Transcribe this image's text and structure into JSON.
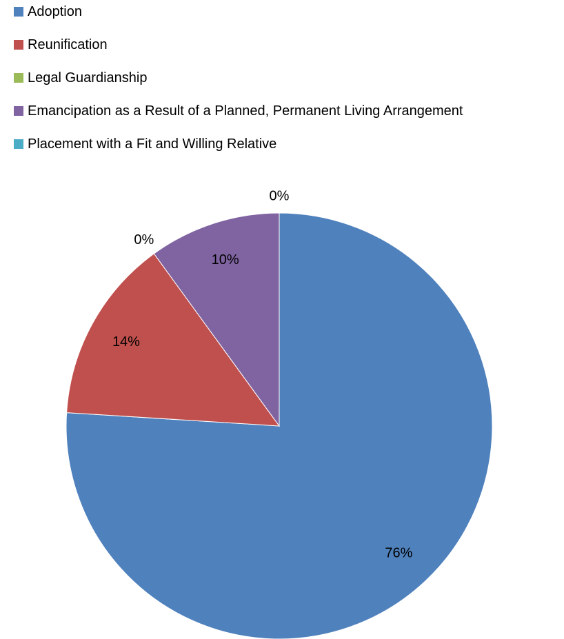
{
  "chart_data": {
    "type": "pie",
    "title": "",
    "legend_position": "top-left",
    "slices": [
      {
        "name": "Adoption",
        "value": 76,
        "label": "76%",
        "color": "#4F81BD"
      },
      {
        "name": "Reunification",
        "value": 14,
        "label": "14%",
        "color": "#C0504D"
      },
      {
        "name": "Legal Guardianship",
        "value": 0,
        "label": "0%",
        "color": "#9BBB59"
      },
      {
        "name": "Emancipation as a Result of a Planned, Permanent Living Arrangement",
        "value": 10,
        "label": "10%",
        "color": "#8064A2"
      },
      {
        "name": "Placement with a Fit and Willing Relative",
        "value": 0,
        "label": "0%",
        "color": "#4BACC6"
      }
    ]
  }
}
